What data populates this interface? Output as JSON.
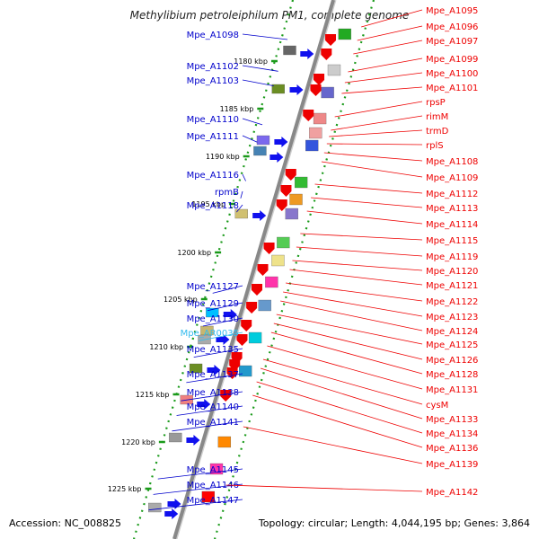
{
  "title": "Methylibium petroleiphilum PM1, complete genome",
  "accession": "Accession: NC_008825",
  "topology": "Topology: circular; Length: 4,044,195 bp; Genes: 3,864",
  "colors": {
    "backbone": "#888888",
    "scale_dots": "#1a9a1a",
    "left_labels": "#0000cc",
    "left_rna_label": "#33bbee",
    "right_labels": "#ee0000",
    "left_arrow": "#1010ee",
    "right_arrow": "#ee0000"
  },
  "scale_ticks": [
    "1180 kbp",
    "1185 kbp",
    "1190 kbp",
    "1195 kbp",
    "1200 kbp",
    "1205 kbp",
    "1210 kbp",
    "1215 kbp",
    "1220 kbp",
    "1225 kbp"
  ],
  "left_genes": [
    {
      "label": "Mpe_A1098"
    },
    {
      "label": "Mpe_A1102"
    },
    {
      "label": "Mpe_A1103"
    },
    {
      "label": "Mpe_A1110"
    },
    {
      "label": "Mpe_A1111"
    },
    {
      "label": "Mpe_A1116"
    },
    {
      "label": "rpmB"
    },
    {
      "label": "Mpe_A1118"
    },
    {
      "label": "Mpe_A1127"
    },
    {
      "label": "Mpe_A1129"
    },
    {
      "label": "Mpe_A1130"
    },
    {
      "label": "Mpe_AR0035"
    },
    {
      "label": "Mpe_A1135"
    },
    {
      "label": "Mpe_A1137"
    },
    {
      "label": "Mpe_A1138"
    },
    {
      "label": "Mpe_A1140"
    },
    {
      "label": "Mpe_A1141"
    },
    {
      "label": "Mpe_A1145"
    },
    {
      "label": "Mpe_A1146"
    },
    {
      "label": "Mpe_A1147"
    }
  ],
  "right_genes": [
    {
      "label": "Mpe_A1095"
    },
    {
      "label": "Mpe_A1096"
    },
    {
      "label": "Mpe_A1097"
    },
    {
      "label": "Mpe_A1099"
    },
    {
      "label": "Mpe_A1100"
    },
    {
      "label": "Mpe_A1101"
    },
    {
      "label": "rpsP"
    },
    {
      "label": "rimM"
    },
    {
      "label": "trmD"
    },
    {
      "label": "rplS"
    },
    {
      "label": "Mpe_A1108"
    },
    {
      "label": "Mpe_A1109"
    },
    {
      "label": "Mpe_A1112"
    },
    {
      "label": "Mpe_A1113"
    },
    {
      "label": "Mpe_A1114"
    },
    {
      "label": "Mpe_A1115"
    },
    {
      "label": "Mpe_A1119"
    },
    {
      "label": "Mpe_A1120"
    },
    {
      "label": "Mpe_A1121"
    },
    {
      "label": "Mpe_A1122"
    },
    {
      "label": "Mpe_A1123"
    },
    {
      "label": "Mpe_A1124"
    },
    {
      "label": "Mpe_A1125"
    },
    {
      "label": "Mpe_A1126"
    },
    {
      "label": "Mpe_A1128"
    },
    {
      "label": "Mpe_A1131"
    },
    {
      "label": "cysM"
    },
    {
      "label": "Mpe_A1133"
    },
    {
      "label": "Mpe_A1134"
    },
    {
      "label": "Mpe_A1136"
    },
    {
      "label": "Mpe_A1139"
    },
    {
      "label": "Mpe_A1142"
    }
  ]
}
